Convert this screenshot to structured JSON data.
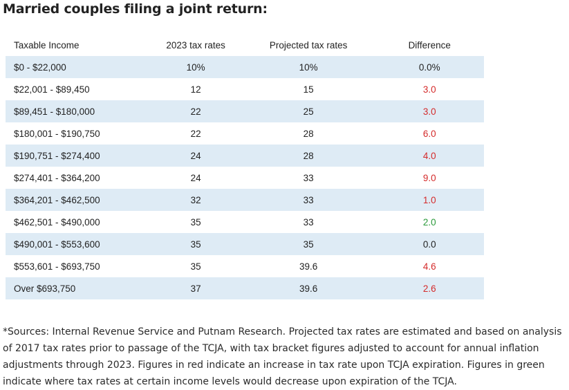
{
  "heading": "Married couples filing a joint return:",
  "table": {
    "headers": {
      "income": "Taxable Income",
      "rate_2023": "2023 tax rates",
      "projected": "Projected tax rates",
      "difference": "Difference"
    },
    "rows": [
      {
        "income": "$0 - $22,000",
        "rate_2023": "10%",
        "projected": "10%",
        "difference": "0.0%",
        "direction": "zero"
      },
      {
        "income": "$22,001 - $89,450",
        "rate_2023": "12",
        "projected": "15",
        "difference": "3.0",
        "direction": "up"
      },
      {
        "income": "$89,451 - $180,000",
        "rate_2023": "22",
        "projected": "25",
        "difference": "3.0",
        "direction": "up"
      },
      {
        "income": "$180,001 - $190,750",
        "rate_2023": "22",
        "projected": "28",
        "difference": "6.0",
        "direction": "up"
      },
      {
        "income": "$190,751 - $274,400",
        "rate_2023": "24",
        "projected": "28",
        "difference": "4.0",
        "direction": "up"
      },
      {
        "income": "$274,401 - $364,200",
        "rate_2023": "24",
        "projected": "33",
        "difference": "9.0",
        "direction": "up"
      },
      {
        "income": "$364,201 - $462,500",
        "rate_2023": "32",
        "projected": "33",
        "difference": "1.0",
        "direction": "up"
      },
      {
        "income": "$462,501 - $490,000",
        "rate_2023": "35",
        "projected": "33",
        "difference": "2.0",
        "direction": "down"
      },
      {
        "income": "$490,001 - $553,600",
        "rate_2023": "35",
        "projected": "35",
        "difference": "0.0",
        "direction": "zero"
      },
      {
        "income": "$553,601 - $693,750",
        "rate_2023": "35",
        "projected": "39.6",
        "difference": "4.6",
        "direction": "up"
      },
      {
        "income": "Over $693,750",
        "rate_2023": "37",
        "projected": "39.6",
        "difference": "2.6",
        "direction": "up"
      }
    ]
  },
  "colors": {
    "row_stripe": "#deebf5",
    "increase": "#d42a2a",
    "decrease": "#2a9a3a"
  },
  "footnote": "*Sources: Internal Revenue Service and Putnam Research. Projected tax rates are estimated and based on analysis of 2017 tax rates prior to passage of the TCJA, with tax bracket figures adjusted to account for annual inflation adjustments through 2023. Figures in red indicate an increase in tax rate upon TCJA expiration. Figures in green indicate where tax rates at certain income levels would decrease upon expiration of the TCJA."
}
